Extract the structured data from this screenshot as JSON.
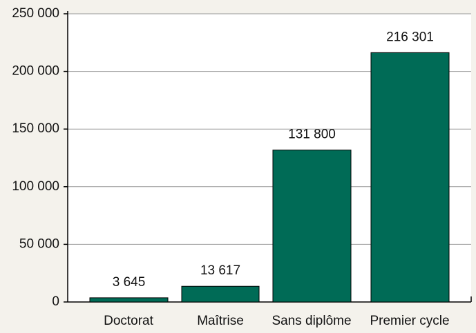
{
  "chart_data": {
    "type": "bar",
    "categories": [
      "Doctorat",
      "Maîtrise",
      "Sans diplôme",
      "Premier cycle"
    ],
    "values": [
      3645,
      13617,
      131800,
      216301
    ],
    "value_labels": [
      "3 645",
      "13 617",
      "131 800",
      "216 301"
    ],
    "color": "#006b56",
    "ylim": [
      0,
      250000
    ],
    "yticks": [
      0,
      {
        "value": 50000,
        "label": "50 000"
      },
      {
        "value": 100000,
        "label": "100 000"
      },
      {
        "value": 150000,
        "label": "150 000"
      },
      {
        "value": 200000,
        "label": "200 000"
      },
      {
        "value": 250000,
        "label": "250 000"
      }
    ],
    "grid": true
  }
}
